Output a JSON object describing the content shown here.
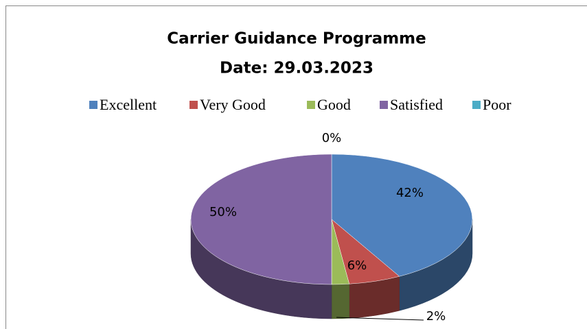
{
  "chart_data": {
    "type": "pie",
    "title": "Carrier Guidance Programme",
    "subtitle": "Date: 29.03.2023",
    "categories": [
      "Excellent",
      "Very Good",
      "Good",
      "Satisfied",
      "Poor"
    ],
    "values": [
      42,
      6,
      2,
      50,
      0
    ],
    "value_labels": [
      "42%",
      "6%",
      "2%",
      "50%",
      "0%"
    ],
    "colors": [
      "#4f81bd",
      "#c0504d",
      "#9bbb59",
      "#8064a2",
      "#4bacc6"
    ],
    "legend": "top"
  }
}
